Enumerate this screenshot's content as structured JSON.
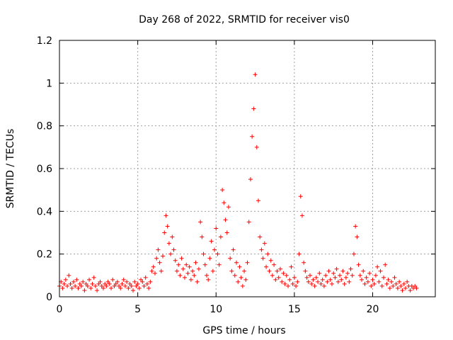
{
  "chart_data": {
    "type": "scatter",
    "title": "Day 268 of 2022, SRMTID for receiver vis0",
    "xlabel": "GPS time / hours",
    "ylabel": "SRMTID / TECUs",
    "xlim": [
      0,
      24
    ],
    "ylim": [
      0,
      1.2
    ],
    "xticks": [
      0,
      5,
      10,
      15,
      20
    ],
    "xtick_labels": [
      "0",
      "5",
      "10",
      "15",
      "20"
    ],
    "yticks": [
      0,
      0.2,
      0.4,
      0.6,
      0.8,
      1,
      1.2
    ],
    "ytick_labels": [
      "0",
      "0.2",
      "0.4",
      "0.6",
      "0.8",
      "1",
      "1.2"
    ],
    "grid": true,
    "marker": "+",
    "color": "#ff0000",
    "series": [
      {
        "name": "vis0",
        "points": [
          [
            0.0,
            0.05
          ],
          [
            0.1,
            0.07
          ],
          [
            0.2,
            0.04
          ],
          [
            0.3,
            0.06
          ],
          [
            0.4,
            0.08
          ],
          [
            0.5,
            0.05
          ],
          [
            0.6,
            0.1
          ],
          [
            0.7,
            0.06
          ],
          [
            0.8,
            0.04
          ],
          [
            0.9,
            0.07
          ],
          [
            1.0,
            0.05
          ],
          [
            1.1,
            0.08
          ],
          [
            1.2,
            0.04
          ],
          [
            1.3,
            0.06
          ],
          [
            1.4,
            0.05
          ],
          [
            1.5,
            0.07
          ],
          [
            1.6,
            0.03
          ],
          [
            1.7,
            0.06
          ],
          [
            1.8,
            0.05
          ],
          [
            1.9,
            0.08
          ],
          [
            2.0,
            0.04
          ],
          [
            2.1,
            0.06
          ],
          [
            2.2,
            0.09
          ],
          [
            2.3,
            0.05
          ],
          [
            2.4,
            0.03
          ],
          [
            2.5,
            0.06
          ],
          [
            2.6,
            0.07
          ],
          [
            2.7,
            0.05
          ],
          [
            2.8,
            0.04
          ],
          [
            2.9,
            0.06
          ],
          [
            3.0,
            0.05
          ],
          [
            3.1,
            0.07
          ],
          [
            3.2,
            0.06
          ],
          [
            3.3,
            0.04
          ],
          [
            3.4,
            0.08
          ],
          [
            3.5,
            0.05
          ],
          [
            3.6,
            0.06
          ],
          [
            3.7,
            0.07
          ],
          [
            3.8,
            0.05
          ],
          [
            3.9,
            0.04
          ],
          [
            4.0,
            0.06
          ],
          [
            4.1,
            0.08
          ],
          [
            4.2,
            0.05
          ],
          [
            4.3,
            0.07
          ],
          [
            4.4,
            0.04
          ],
          [
            4.5,
            0.06
          ],
          [
            4.6,
            0.05
          ],
          [
            4.7,
            0.03
          ],
          [
            4.8,
            0.07
          ],
          [
            4.9,
            0.05
          ],
          [
            5.0,
            0.06
          ],
          [
            5.1,
            0.04
          ],
          [
            5.2,
            0.08
          ],
          [
            5.3,
            0.07
          ],
          [
            5.4,
            0.05
          ],
          [
            5.5,
            0.09
          ],
          [
            5.6,
            0.06
          ],
          [
            5.7,
            0.04
          ],
          [
            5.8,
            0.07
          ],
          [
            5.9,
            0.12
          ],
          [
            6.0,
            0.14
          ],
          [
            6.1,
            0.11
          ],
          [
            6.2,
            0.18
          ],
          [
            6.3,
            0.22
          ],
          [
            6.4,
            0.16
          ],
          [
            6.5,
            0.12
          ],
          [
            6.6,
            0.19
          ],
          [
            6.7,
            0.3
          ],
          [
            6.8,
            0.38
          ],
          [
            6.9,
            0.33
          ],
          [
            7.0,
            0.25
          ],
          [
            7.1,
            0.2
          ],
          [
            7.2,
            0.28
          ],
          [
            7.3,
            0.22
          ],
          [
            7.4,
            0.17
          ],
          [
            7.5,
            0.12
          ],
          [
            7.6,
            0.15
          ],
          [
            7.7,
            0.1
          ],
          [
            7.8,
            0.18
          ],
          [
            7.9,
            0.13
          ],
          [
            8.0,
            0.09
          ],
          [
            8.1,
            0.15
          ],
          [
            8.2,
            0.11
          ],
          [
            8.3,
            0.14
          ],
          [
            8.4,
            0.08
          ],
          [
            8.5,
            0.12
          ],
          [
            8.6,
            0.1
          ],
          [
            8.7,
            0.16
          ],
          [
            8.8,
            0.07
          ],
          [
            8.9,
            0.13
          ],
          [
            9.0,
            0.35
          ],
          [
            9.1,
            0.28
          ],
          [
            9.2,
            0.2
          ],
          [
            9.3,
            0.15
          ],
          [
            9.4,
            0.1
          ],
          [
            9.5,
            0.08
          ],
          [
            9.6,
            0.18
          ],
          [
            9.7,
            0.26
          ],
          [
            9.8,
            0.12
          ],
          [
            9.9,
            0.22
          ],
          [
            10.0,
            0.32
          ],
          [
            10.1,
            0.2
          ],
          [
            10.2,
            0.15
          ],
          [
            10.3,
            0.28
          ],
          [
            10.4,
            0.5
          ],
          [
            10.5,
            0.44
          ],
          [
            10.6,
            0.36
          ],
          [
            10.7,
            0.3
          ],
          [
            10.8,
            0.42
          ],
          [
            10.9,
            0.18
          ],
          [
            11.0,
            0.12
          ],
          [
            11.1,
            0.22
          ],
          [
            11.2,
            0.1
          ],
          [
            11.3,
            0.16
          ],
          [
            11.4,
            0.07
          ],
          [
            11.5,
            0.14
          ],
          [
            11.6,
            0.09
          ],
          [
            11.7,
            0.05
          ],
          [
            11.8,
            0.12
          ],
          [
            11.9,
            0.08
          ],
          [
            12.0,
            0.16
          ],
          [
            12.1,
            0.35
          ],
          [
            12.2,
            0.55
          ],
          [
            12.3,
            0.75
          ],
          [
            12.4,
            0.88
          ],
          [
            12.5,
            1.04
          ],
          [
            12.6,
            0.7
          ],
          [
            12.7,
            0.45
          ],
          [
            12.8,
            0.28
          ],
          [
            12.9,
            0.22
          ],
          [
            13.0,
            0.18
          ],
          [
            13.1,
            0.25
          ],
          [
            13.2,
            0.14
          ],
          [
            13.3,
            0.2
          ],
          [
            13.4,
            0.12
          ],
          [
            13.5,
            0.17
          ],
          [
            13.6,
            0.1
          ],
          [
            13.7,
            0.15
          ],
          [
            13.8,
            0.08
          ],
          [
            13.9,
            0.12
          ],
          [
            14.0,
            0.09
          ],
          [
            14.1,
            0.13
          ],
          [
            14.2,
            0.07
          ],
          [
            14.3,
            0.11
          ],
          [
            14.4,
            0.06
          ],
          [
            14.5,
            0.1
          ],
          [
            14.6,
            0.05
          ],
          [
            14.7,
            0.08
          ],
          [
            14.8,
            0.14
          ],
          [
            14.9,
            0.06
          ],
          [
            15.0,
            0.09
          ],
          [
            15.1,
            0.05
          ],
          [
            15.2,
            0.07
          ],
          [
            15.3,
            0.2
          ],
          [
            15.4,
            0.47
          ],
          [
            15.5,
            0.38
          ],
          [
            15.6,
            0.16
          ],
          [
            15.7,
            0.12
          ],
          [
            15.8,
            0.09
          ],
          [
            15.9,
            0.07
          ],
          [
            16.0,
            0.1
          ],
          [
            16.1,
            0.06
          ],
          [
            16.2,
            0.08
          ],
          [
            16.3,
            0.05
          ],
          [
            16.4,
            0.09
          ],
          [
            16.5,
            0.07
          ],
          [
            16.6,
            0.11
          ],
          [
            16.7,
            0.06
          ],
          [
            16.8,
            0.08
          ],
          [
            16.9,
            0.05
          ],
          [
            17.0,
            0.1
          ],
          [
            17.1,
            0.07
          ],
          [
            17.2,
            0.12
          ],
          [
            17.3,
            0.08
          ],
          [
            17.4,
            0.06
          ],
          [
            17.5,
            0.11
          ],
          [
            17.6,
            0.09
          ],
          [
            17.7,
            0.13
          ],
          [
            17.8,
            0.07
          ],
          [
            17.9,
            0.1
          ],
          [
            18.0,
            0.08
          ],
          [
            18.1,
            0.12
          ],
          [
            18.2,
            0.06
          ],
          [
            18.3,
            0.09
          ],
          [
            18.4,
            0.11
          ],
          [
            18.5,
            0.07
          ],
          [
            18.6,
            0.13
          ],
          [
            18.7,
            0.1
          ],
          [
            18.8,
            0.2
          ],
          [
            18.9,
            0.33
          ],
          [
            19.0,
            0.28
          ],
          [
            19.1,
            0.15
          ],
          [
            19.2,
            0.1
          ],
          [
            19.3,
            0.08
          ],
          [
            19.4,
            0.12
          ],
          [
            19.5,
            0.06
          ],
          [
            19.6,
            0.09
          ],
          [
            19.7,
            0.07
          ],
          [
            19.8,
            0.11
          ],
          [
            19.9,
            0.05
          ],
          [
            20.0,
            0.08
          ],
          [
            20.1,
            0.06
          ],
          [
            20.2,
            0.1
          ],
          [
            20.3,
            0.14
          ],
          [
            20.4,
            0.07
          ],
          [
            20.5,
            0.12
          ],
          [
            20.6,
            0.05
          ],
          [
            20.7,
            0.09
          ],
          [
            20.8,
            0.15
          ],
          [
            20.9,
            0.06
          ],
          [
            21.0,
            0.08
          ],
          [
            21.1,
            0.04
          ],
          [
            21.2,
            0.07
          ],
          [
            21.3,
            0.05
          ],
          [
            21.4,
            0.09
          ],
          [
            21.5,
            0.06
          ],
          [
            21.6,
            0.04
          ],
          [
            21.7,
            0.07
          ],
          [
            21.8,
            0.05
          ],
          [
            21.9,
            0.03
          ],
          [
            22.0,
            0.06
          ],
          [
            22.1,
            0.04
          ],
          [
            22.2,
            0.07
          ],
          [
            22.3,
            0.05
          ],
          [
            22.4,
            0.03
          ],
          [
            22.5,
            0.05
          ],
          [
            22.6,
            0.04
          ],
          [
            22.7,
            0.05
          ],
          [
            22.8,
            0.04
          ]
        ]
      }
    ]
  }
}
